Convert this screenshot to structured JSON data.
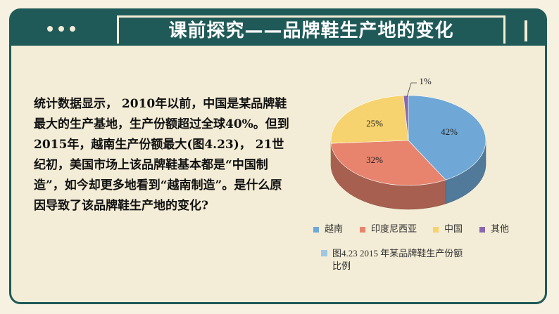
{
  "header": {
    "title": "课前探究——品牌鞋生产地的变化"
  },
  "body": {
    "paragraph": "统计数据显示， 2010年以前，中国是某品牌鞋最大的生产基地，生产份额超过全球40%。但到2015年，越南生产份额最大(图4.23)， 21世纪初，美国市场上该品牌鞋基本都是“中国制造”，如今却更多地看到“越南制造”。是什么原因导致了该品牌鞋生产地的变化?"
  },
  "chart_data": {
    "type": "pie",
    "title": "图4.23   2015 年某品牌鞋生产份额比例",
    "categories": [
      "越南",
      "印度尼西亚",
      "中国",
      "其他"
    ],
    "values": [
      42,
      32,
      25,
      1
    ],
    "labels": [
      "42%",
      "32%",
      "25%",
      "1%"
    ],
    "colors": [
      "#6fa8d6",
      "#e8846e",
      "#f6d36e",
      "#8a67ad"
    ],
    "legend_position": "bottom"
  },
  "caption": {
    "line1": "图4.23   2015 年某品牌鞋生产份额",
    "line2": "比例"
  }
}
